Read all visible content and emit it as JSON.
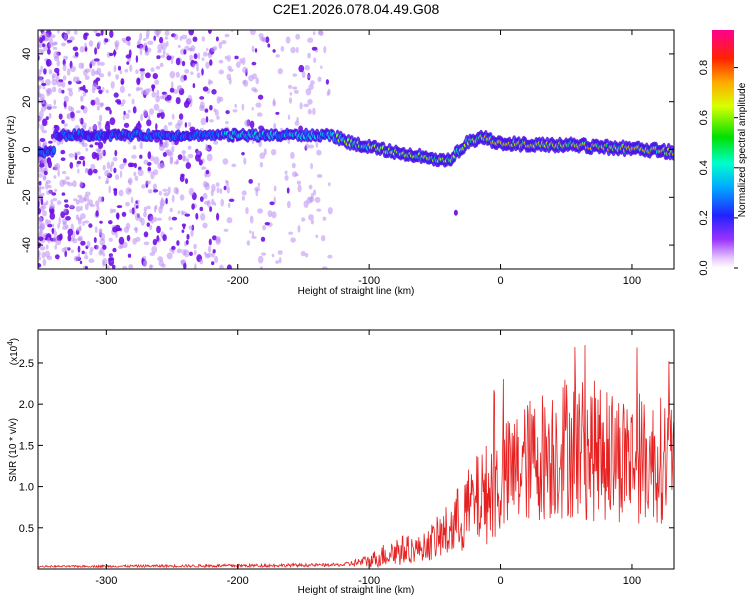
{
  "title": "C2E1.2026.078.04.49.G08",
  "colors": {
    "snr_line": "#e62020",
    "scatter_noise": "#7a1fe0",
    "frame": "#000000"
  },
  "chart_data": [
    {
      "type": "heatmap",
      "ylabel": "Frequency (Hz)",
      "xlabel": "Height of straight line (km)",
      "xlim": [
        -352,
        132
      ],
      "ylim": [
        -50,
        50
      ],
      "xticks": [
        -300,
        -200,
        -100,
        0,
        100
      ],
      "yticks": [
        -40,
        -20,
        0,
        20,
        40
      ],
      "colorbar": {
        "label": "Normalized spectral amplitude",
        "range": [
          0.0,
          0.95
        ],
        "ticks": [
          "0.0",
          "0.2",
          "0.4",
          "0.6",
          "0.8"
        ]
      },
      "ridge": [
        {
          "x": -340,
          "y": 6
        },
        {
          "x": -300,
          "y": 6
        },
        {
          "x": -250,
          "y": 6
        },
        {
          "x": -210,
          "y": 6
        },
        {
          "x": -160,
          "y": 6
        },
        {
          "x": -130,
          "y": 6
        },
        {
          "x": -115,
          "y": 3
        },
        {
          "x": -90,
          "y": 0
        },
        {
          "x": -70,
          "y": -2
        },
        {
          "x": -55,
          "y": -3
        },
        {
          "x": -45,
          "y": -5
        },
        {
          "x": -38,
          "y": -4
        },
        {
          "x": -25,
          "y": 3
        },
        {
          "x": -15,
          "y": 5
        },
        {
          "x": 0,
          "y": 3
        },
        {
          "x": 20,
          "y": 2
        },
        {
          "x": 50,
          "y": 2
        },
        {
          "x": 80,
          "y": 1
        },
        {
          "x": 110,
          "y": 0
        },
        {
          "x": 132,
          "y": -1
        }
      ]
    },
    {
      "type": "line",
      "ylabel": "SNR (10 * v/v)",
      "xlabel": "Height of straight line (km)",
      "multiplier": "(x10",
      "exponent": "4",
      "multiplier_close": ")",
      "xlim": [
        -352,
        132
      ],
      "ylim": [
        0,
        2.9
      ],
      "xticks": [
        -300,
        -200,
        -100,
        0,
        100
      ],
      "yticks": [
        "0.5",
        "1.0",
        "1.5",
        "2.0",
        "2.5"
      ],
      "envelope": [
        {
          "x": -352,
          "mean": 0.03,
          "amp": 0.01
        },
        {
          "x": -200,
          "mean": 0.04,
          "amp": 0.02
        },
        {
          "x": -120,
          "mean": 0.05,
          "amp": 0.02
        },
        {
          "x": -100,
          "mean": 0.1,
          "amp": 0.08
        },
        {
          "x": -80,
          "mean": 0.22,
          "amp": 0.2
        },
        {
          "x": -60,
          "mean": 0.25,
          "amp": 0.15
        },
        {
          "x": -40,
          "mean": 0.45,
          "amp": 0.35
        },
        {
          "x": -20,
          "mean": 0.8,
          "amp": 0.55
        },
        {
          "x": 0,
          "mean": 1.05,
          "amp": 0.7
        },
        {
          "x": 20,
          "mean": 1.3,
          "amp": 0.75
        },
        {
          "x": 50,
          "mean": 1.5,
          "amp": 0.9
        },
        {
          "x": 80,
          "mean": 1.4,
          "amp": 0.85
        },
        {
          "x": 110,
          "mean": 1.3,
          "amp": 0.75
        },
        {
          "x": 132,
          "mean": 1.35,
          "amp": 0.8
        }
      ]
    }
  ]
}
